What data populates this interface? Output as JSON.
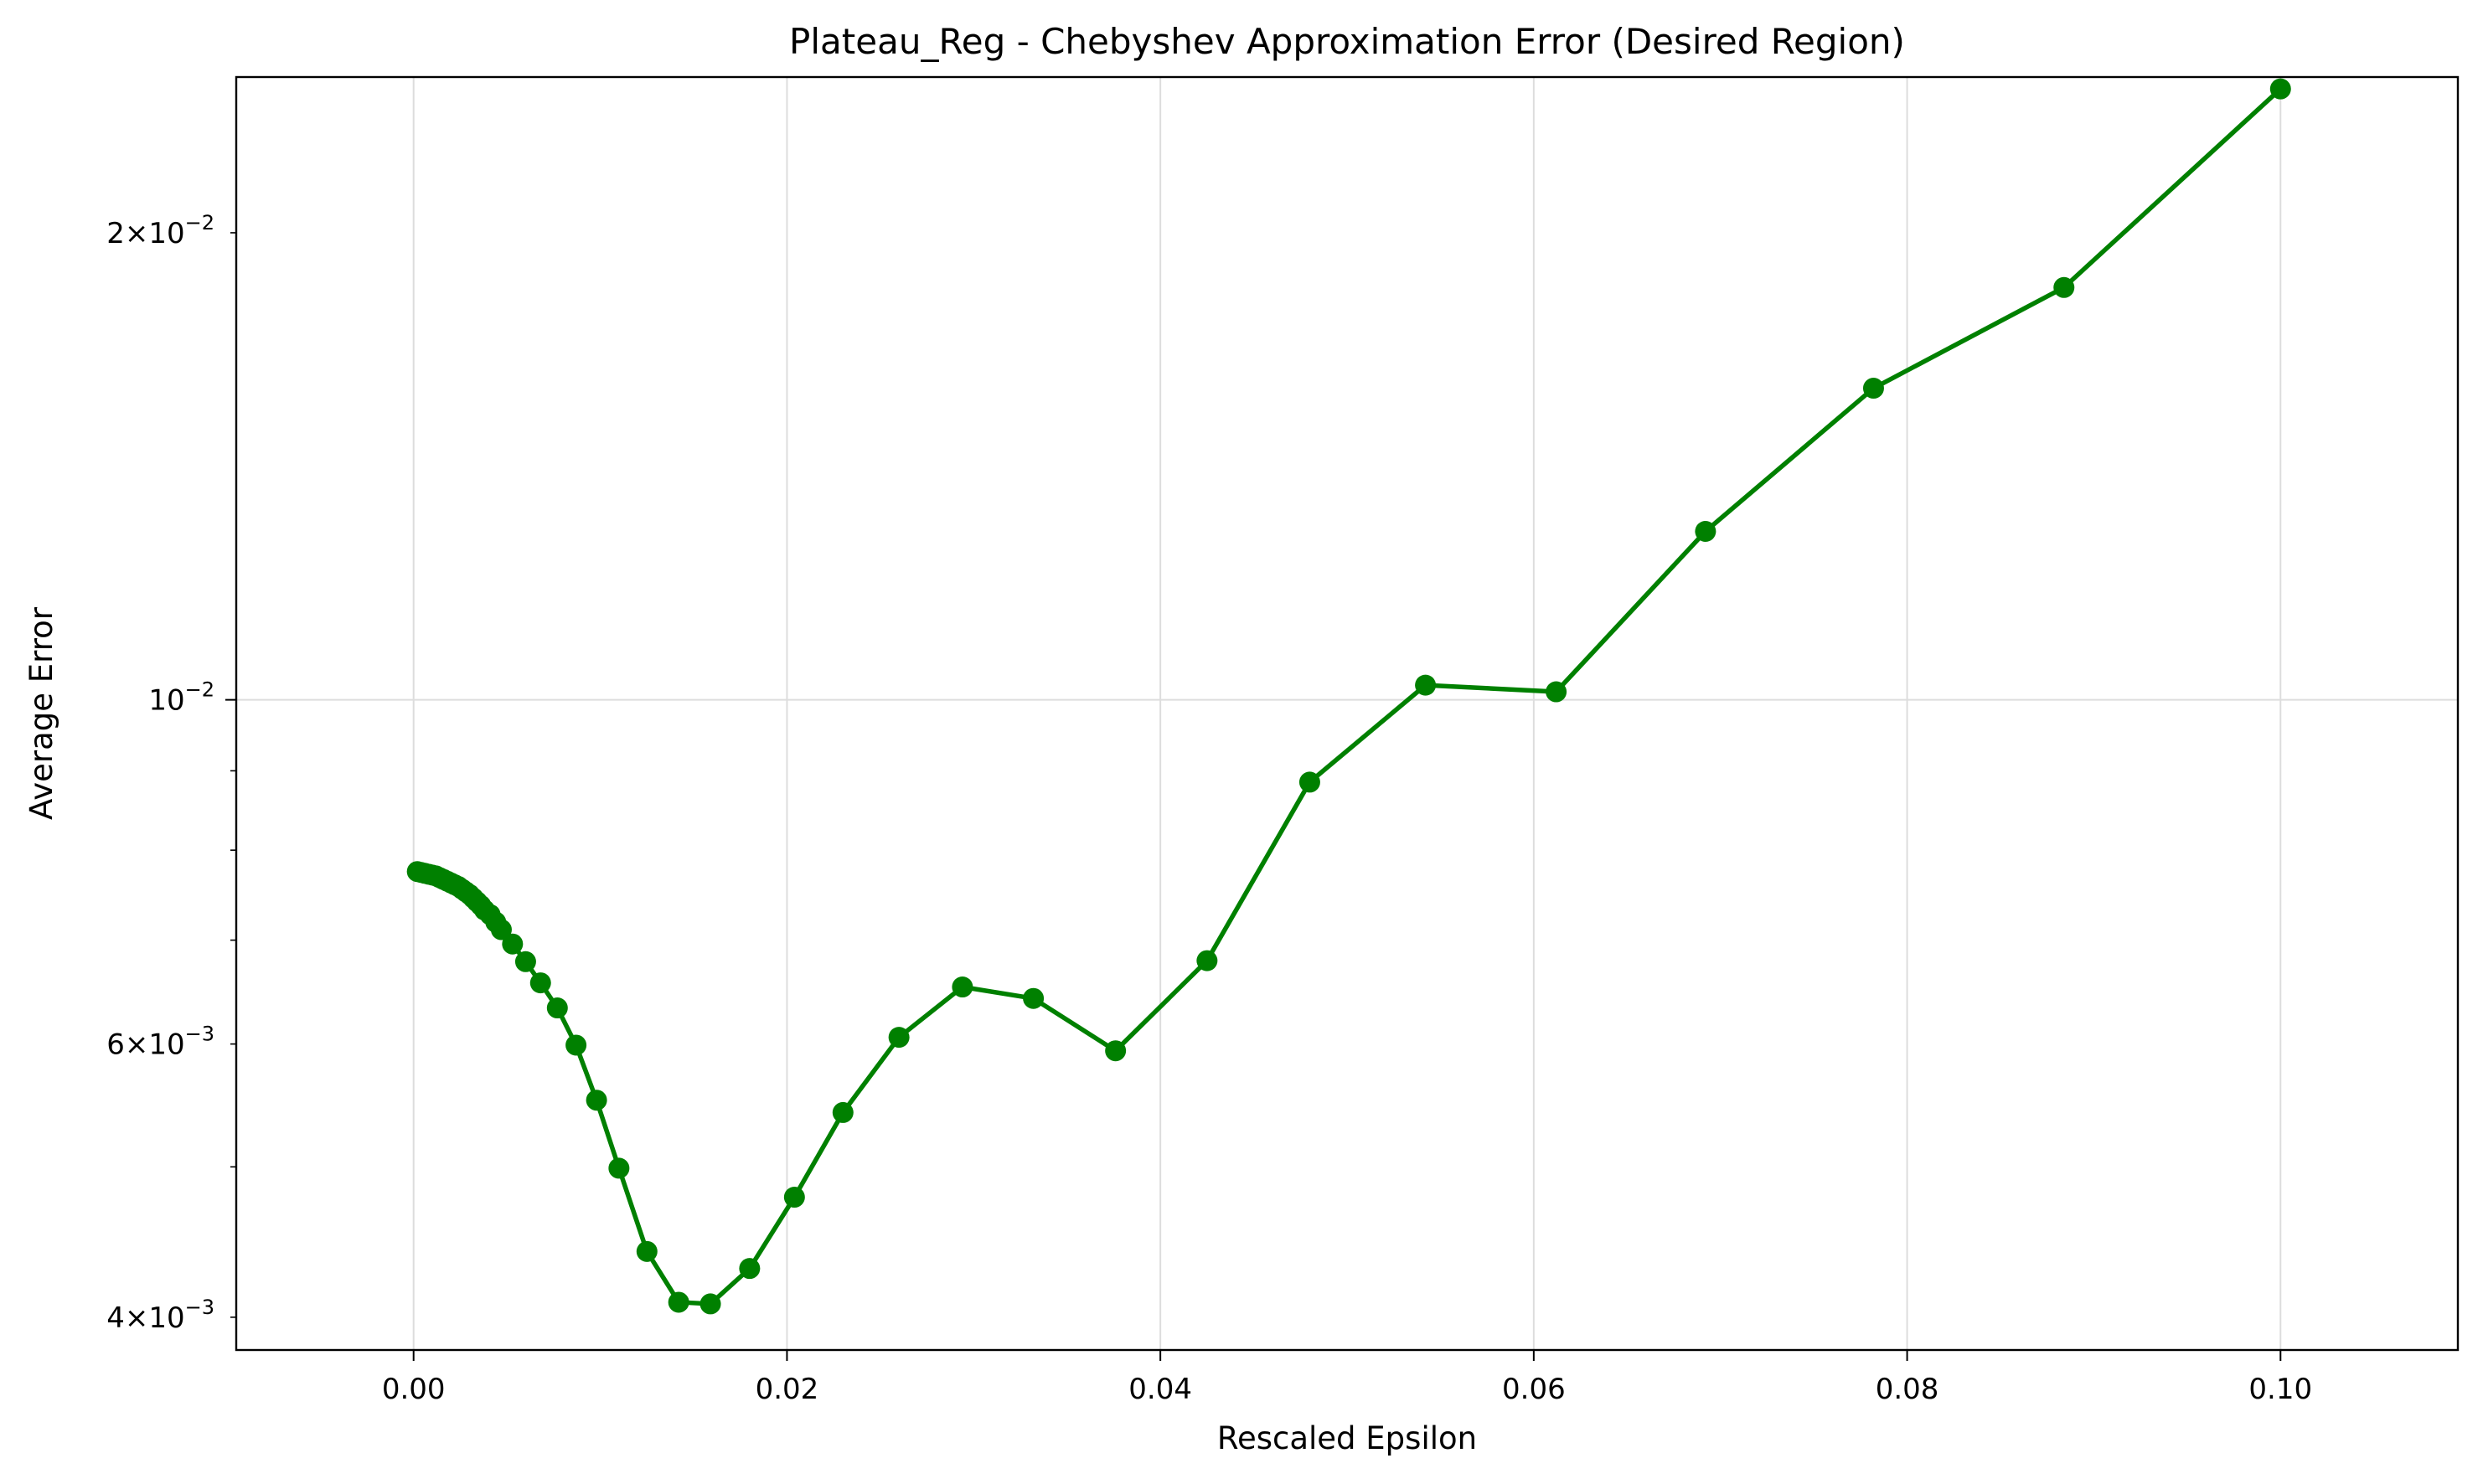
{
  "chart_data": {
    "type": "line",
    "title": "Plateau_Reg - Chebyshev Approximation Error (Desired Region)",
    "xlabel": "Rescaled Epsilon",
    "ylabel": "Average Error",
    "y_scale": "log",
    "grid": true,
    "legend": "none",
    "line_color": "#008000",
    "marker": "circle",
    "xlim": [
      -0.0095,
      0.1095
    ],
    "ylim": [
      0.00381,
      0.0252
    ],
    "x_ticks": [
      {
        "value": 0.0,
        "label": "0.00"
      },
      {
        "value": 0.02,
        "label": "0.02"
      },
      {
        "value": 0.04,
        "label": "0.04"
      },
      {
        "value": 0.06,
        "label": "0.06"
      },
      {
        "value": 0.08,
        "label": "0.08"
      },
      {
        "value": 0.1,
        "label": "0.10"
      }
    ],
    "y_major_ticks": [
      {
        "value": 0.01,
        "base": "10",
        "exponent": "−2"
      }
    ],
    "y_minor_ticks": [
      {
        "value": 0.004,
        "mantissa": "4",
        "base": "10",
        "exponent": "−3"
      },
      {
        "value": 0.005
      },
      {
        "value": 0.006,
        "mantissa": "6",
        "base": "10",
        "exponent": "−3"
      },
      {
        "value": 0.007
      },
      {
        "value": 0.008
      },
      {
        "value": 0.009
      },
      {
        "value": 0.02,
        "mantissa": "2",
        "base": "10",
        "exponent": "−2"
      }
    ],
    "series": [
      {
        "x": [
          0.0002,
          0.0004,
          0.0006,
          0.0008,
          0.001,
          0.0012,
          0.0014,
          0.0016,
          0.0018,
          0.002,
          0.0022,
          0.0024,
          0.0026,
          0.0028,
          0.003,
          0.0032,
          0.0034,
          0.0036,
          0.0038,
          0.0041,
          0.0044,
          0.0047,
          0.0053,
          0.006,
          0.0068,
          0.0077,
          0.0087,
          0.0098,
          0.011,
          0.0125,
          0.0142,
          0.0159,
          0.018,
          0.0204,
          0.023,
          0.026,
          0.0294,
          0.0332,
          0.0376,
          0.0425,
          0.048,
          0.0542,
          0.0612,
          0.0692,
          0.0782,
          0.0884,
          0.1
        ],
        "y": [
          0.00775,
          0.00774,
          0.00773,
          0.00772,
          0.00771,
          0.0077,
          0.00768,
          0.00766,
          0.00764,
          0.00762,
          0.0076,
          0.00758,
          0.00755,
          0.00752,
          0.00749,
          0.00745,
          0.00741,
          0.00737,
          0.00732,
          0.00727,
          0.00719,
          0.00711,
          0.00696,
          0.00678,
          0.00657,
          0.00633,
          0.00599,
          0.00552,
          0.00499,
          0.00441,
          0.00409,
          0.00408,
          0.0043,
          0.00478,
          0.00542,
          0.00606,
          0.00653,
          0.00642,
          0.00594,
          0.00679,
          0.00885,
          0.01022,
          0.01012,
          0.01284,
          0.01588,
          0.01844,
          0.02476
        ]
      }
    ]
  }
}
